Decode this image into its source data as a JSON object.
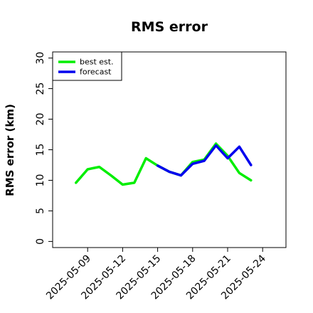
{
  "chart_data": {
    "type": "line",
    "title": "RMS error",
    "xlabel": "",
    "ylabel": "RMS error (km)",
    "ylim": [
      -1,
      31
    ],
    "xlim": [
      "2025-05-06",
      "2025-05-26"
    ],
    "yticks": [
      0,
      5,
      10,
      15,
      20,
      25,
      30
    ],
    "xticks": [
      "2025-05-09",
      "2025-05-12",
      "2025-05-15",
      "2025-05-18",
      "2025-05-21",
      "2025-05-24"
    ],
    "highlight_tick": "2025-05-15",
    "highlight_color": "#228b22",
    "legend_position": "top-left",
    "grid": false,
    "series": [
      {
        "name": "best est.",
        "color": "#00ee00",
        "x": [
          "2025-05-08",
          "2025-05-09",
          "2025-05-10",
          "2025-05-11",
          "2025-05-12",
          "2025-05-13",
          "2025-05-14",
          "2025-05-15",
          "2025-05-16",
          "2025-05-17",
          "2025-05-18",
          "2025-05-19",
          "2025-05-20",
          "2025-05-21",
          "2025-05-22",
          "2025-05-23"
        ],
        "y": [
          9.6,
          11.8,
          12.2,
          10.8,
          9.3,
          9.6,
          13.6,
          12.4,
          11.4,
          10.8,
          13.0,
          13.4,
          16.0,
          14.0,
          11.2,
          10.0
        ]
      },
      {
        "name": "forecast",
        "color": "#0000ee",
        "x": [
          "2025-05-15",
          "2025-05-16",
          "2025-05-17",
          "2025-05-18",
          "2025-05-19",
          "2025-05-20",
          "2025-05-21",
          "2025-05-22",
          "2025-05-23"
        ],
        "y": [
          12.4,
          11.4,
          10.8,
          12.7,
          13.2,
          15.7,
          13.6,
          15.5,
          12.5
        ]
      }
    ]
  }
}
